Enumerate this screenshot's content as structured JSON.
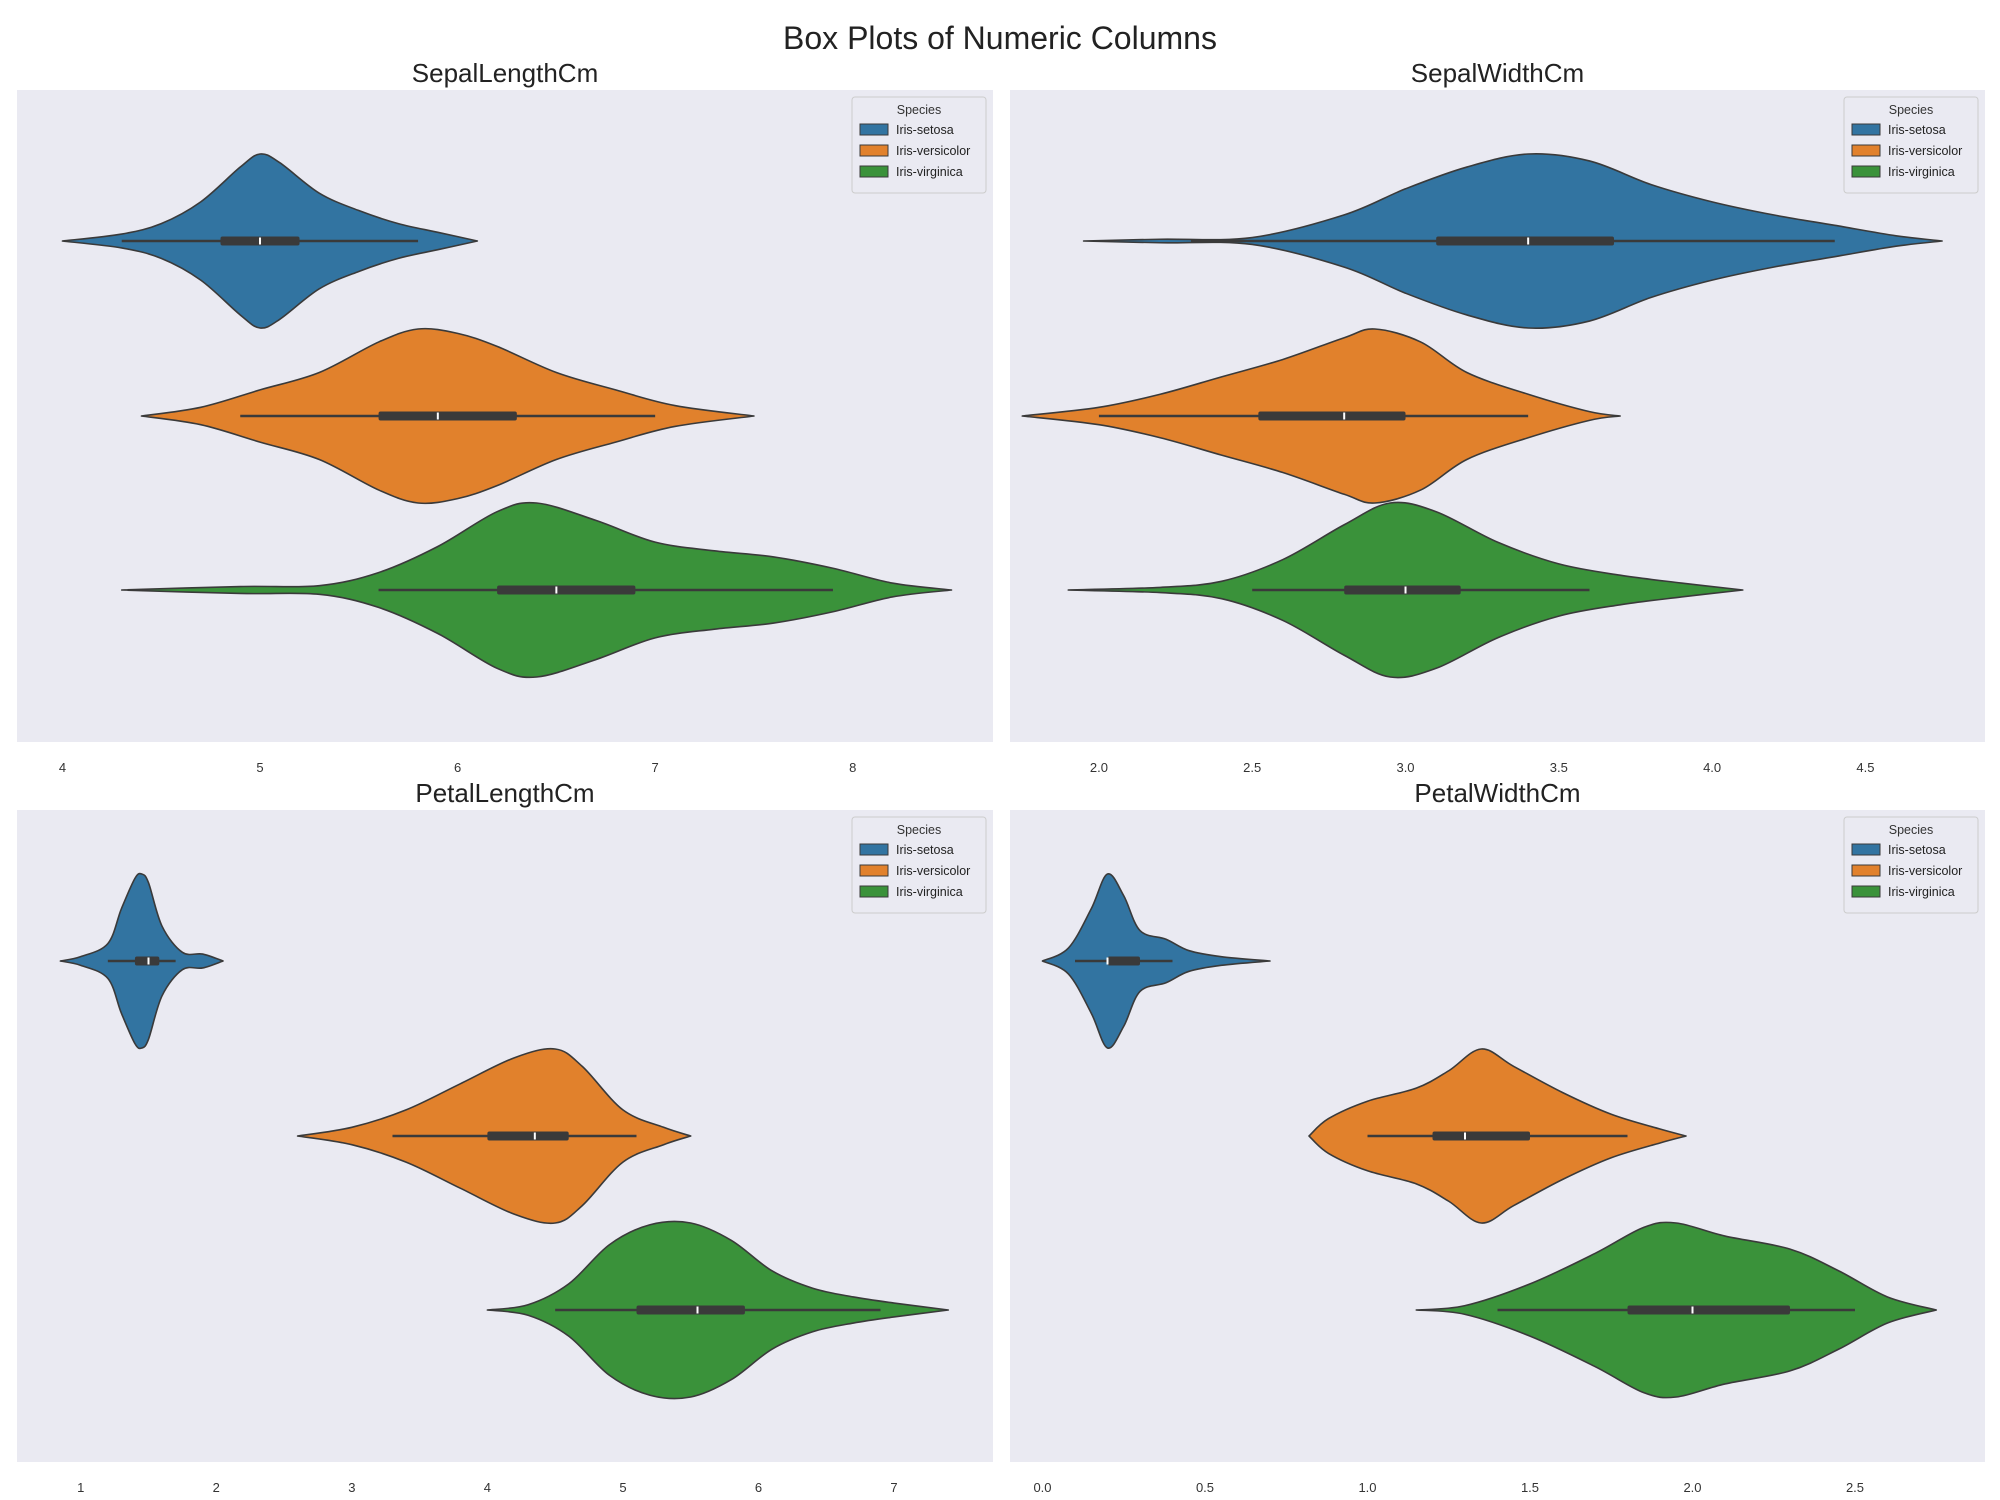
{
  "suptitle": "Box Plots of Numeric Columns",
  "palette": {
    "background": "#EAEAF2",
    "Iris-setosa": "#3274A1",
    "Iris-versicolor": "#E1812C",
    "Iris-virginica": "#3A923A",
    "outline": "#3A3A3A",
    "box": "#3A3A3A",
    "median": "#FFFFFF"
  },
  "chart_data": [
    {
      "type": "violin",
      "orientation": "horizontal",
      "title": "SepalLengthCm",
      "xlim": [
        3.77,
        8.71
      ],
      "xticks": [
        4,
        5,
        6,
        7,
        8
      ],
      "tick_labels": [
        "4",
        "5",
        "6",
        "7",
        "8"
      ],
      "grid": false,
      "legend": {
        "title": "Species",
        "loc": "upper right",
        "entries": [
          "Iris-setosa",
          "Iris-versicolor",
          "Iris-virginica"
        ]
      },
      "series": [
        {
          "name": "Iris-setosa",
          "support": [
            4.0,
            6.1
          ],
          "whiskers": [
            4.3,
            5.8
          ],
          "q1": 4.8,
          "q3": 5.2,
          "median": 5.0,
          "profile": [
            [
              4.0,
              0.0
            ],
            [
              4.3,
              0.08
            ],
            [
              4.5,
              0.2
            ],
            [
              4.7,
              0.45
            ],
            [
              4.9,
              0.85
            ],
            [
              5.0,
              1.0
            ],
            [
              5.1,
              0.9
            ],
            [
              5.3,
              0.55
            ],
            [
              5.5,
              0.35
            ],
            [
              5.7,
              0.2
            ],
            [
              5.9,
              0.1
            ],
            [
              6.1,
              0.0
            ]
          ]
        },
        {
          "name": "Iris-versicolor",
          "support": [
            4.4,
            7.5
          ],
          "whiskers": [
            4.9,
            7.0
          ],
          "q1": 5.6,
          "q3": 6.3,
          "median": 5.9,
          "profile": [
            [
              4.4,
              0.0
            ],
            [
              4.7,
              0.1
            ],
            [
              5.0,
              0.3
            ],
            [
              5.3,
              0.5
            ],
            [
              5.6,
              0.85
            ],
            [
              5.8,
              1.0
            ],
            [
              6.0,
              0.95
            ],
            [
              6.2,
              0.8
            ],
            [
              6.5,
              0.5
            ],
            [
              6.8,
              0.3
            ],
            [
              7.1,
              0.12
            ],
            [
              7.5,
              0.0
            ]
          ]
        },
        {
          "name": "Iris-virginica",
          "support": [
            4.3,
            8.5
          ],
          "whiskers": [
            5.6,
            7.9
          ],
          "q1": 6.2,
          "q3": 6.9,
          "median": 6.5,
          "profile": [
            [
              4.3,
              0.0
            ],
            [
              4.9,
              0.04
            ],
            [
              5.3,
              0.05
            ],
            [
              5.6,
              0.2
            ],
            [
              5.9,
              0.5
            ],
            [
              6.2,
              0.9
            ],
            [
              6.4,
              1.0
            ],
            [
              6.7,
              0.8
            ],
            [
              7.0,
              0.55
            ],
            [
              7.3,
              0.45
            ],
            [
              7.6,
              0.38
            ],
            [
              7.9,
              0.25
            ],
            [
              8.2,
              0.08
            ],
            [
              8.5,
              0.0
            ]
          ]
        }
      ]
    },
    {
      "type": "violin",
      "orientation": "horizontal",
      "title": "SepalWidthCm",
      "xlim": [
        1.71,
        4.89
      ],
      "xticks": [
        2.0,
        2.5,
        3.0,
        3.5,
        4.0,
        4.5
      ],
      "tick_labels": [
        "2.0",
        "2.5",
        "3.0",
        "3.5",
        "4.0",
        "4.5"
      ],
      "grid": false,
      "legend": {
        "title": "Species",
        "loc": "upper right",
        "entries": [
          "Iris-setosa",
          "Iris-versicolor",
          "Iris-virginica"
        ]
      },
      "series": [
        {
          "name": "Iris-setosa",
          "support": [
            1.95,
            4.75
          ],
          "whiskers": [
            2.3,
            4.4
          ],
          "q1": 3.1,
          "q3": 3.68,
          "median": 3.4,
          "profile": [
            [
              1.95,
              0.0
            ],
            [
              2.2,
              0.02
            ],
            [
              2.5,
              0.04
            ],
            [
              2.8,
              0.3
            ],
            [
              3.0,
              0.6
            ],
            [
              3.2,
              0.85
            ],
            [
              3.4,
              1.0
            ],
            [
              3.6,
              0.92
            ],
            [
              3.8,
              0.65
            ],
            [
              4.0,
              0.45
            ],
            [
              4.2,
              0.3
            ],
            [
              4.4,
              0.18
            ],
            [
              4.6,
              0.06
            ],
            [
              4.75,
              0.0
            ]
          ]
        },
        {
          "name": "Iris-versicolor",
          "support": [
            1.75,
            3.7
          ],
          "whiskers": [
            2.0,
            3.4
          ],
          "q1": 2.52,
          "q3": 3.0,
          "median": 2.8,
          "profile": [
            [
              1.75,
              0.0
            ],
            [
              2.0,
              0.1
            ],
            [
              2.2,
              0.25
            ],
            [
              2.4,
              0.45
            ],
            [
              2.6,
              0.65
            ],
            [
              2.8,
              0.9
            ],
            [
              2.9,
              1.0
            ],
            [
              3.05,
              0.85
            ],
            [
              3.2,
              0.5
            ],
            [
              3.4,
              0.25
            ],
            [
              3.6,
              0.05
            ],
            [
              3.7,
              0.0
            ]
          ]
        },
        {
          "name": "Iris-virginica",
          "support": [
            1.9,
            4.1
          ],
          "whiskers": [
            2.5,
            3.6
          ],
          "q1": 2.8,
          "q3": 3.18,
          "median": 3.0,
          "profile": [
            [
              1.9,
              0.0
            ],
            [
              2.2,
              0.03
            ],
            [
              2.4,
              0.1
            ],
            [
              2.6,
              0.35
            ],
            [
              2.8,
              0.75
            ],
            [
              2.95,
              1.0
            ],
            [
              3.1,
              0.9
            ],
            [
              3.3,
              0.55
            ],
            [
              3.5,
              0.3
            ],
            [
              3.7,
              0.17
            ],
            [
              3.9,
              0.08
            ],
            [
              4.1,
              0.0
            ]
          ]
        }
      ]
    },
    {
      "type": "violin",
      "orientation": "horizontal",
      "title": "PetalLengthCm",
      "xlim": [
        0.53,
        7.73
      ],
      "xticks": [
        1,
        2,
        3,
        4,
        5,
        6,
        7
      ],
      "tick_labels": [
        "1",
        "2",
        "3",
        "4",
        "5",
        "6",
        "7"
      ],
      "grid": false,
      "legend": {
        "title": "Species",
        "loc": "upper right",
        "entries": [
          "Iris-setosa",
          "Iris-versicolor",
          "Iris-virginica"
        ]
      },
      "series": [
        {
          "name": "Iris-setosa",
          "support": [
            0.85,
            2.05
          ],
          "whiskers": [
            1.2,
            1.7
          ],
          "q1": 1.4,
          "q3": 1.58,
          "median": 1.5,
          "profile": [
            [
              0.85,
              0.0
            ],
            [
              1.0,
              0.05
            ],
            [
              1.2,
              0.2
            ],
            [
              1.3,
              0.6
            ],
            [
              1.4,
              0.95
            ],
            [
              1.45,
              1.0
            ],
            [
              1.5,
              0.9
            ],
            [
              1.6,
              0.4
            ],
            [
              1.75,
              0.1
            ],
            [
              1.9,
              0.08
            ],
            [
              2.05,
              0.0
            ]
          ]
        },
        {
          "name": "Iris-versicolor",
          "support": [
            2.6,
            5.5
          ],
          "whiskers": [
            3.3,
            5.1
          ],
          "q1": 4.0,
          "q3": 4.6,
          "median": 4.35,
          "profile": [
            [
              2.6,
              0.0
            ],
            [
              3.0,
              0.1
            ],
            [
              3.4,
              0.3
            ],
            [
              3.8,
              0.6
            ],
            [
              4.2,
              0.9
            ],
            [
              4.5,
              1.0
            ],
            [
              4.7,
              0.8
            ],
            [
              5.0,
              0.3
            ],
            [
              5.3,
              0.1
            ],
            [
              5.5,
              0.0
            ]
          ]
        },
        {
          "name": "Iris-virginica",
          "support": [
            4.0,
            7.4
          ],
          "whiskers": [
            4.5,
            6.9
          ],
          "q1": 5.1,
          "q3": 5.9,
          "median": 5.55,
          "profile": [
            [
              4.0,
              0.0
            ],
            [
              4.3,
              0.06
            ],
            [
              4.6,
              0.3
            ],
            [
              4.9,
              0.75
            ],
            [
              5.2,
              0.98
            ],
            [
              5.5,
              1.0
            ],
            [
              5.8,
              0.8
            ],
            [
              6.1,
              0.45
            ],
            [
              6.4,
              0.25
            ],
            [
              6.7,
              0.15
            ],
            [
              7.0,
              0.08
            ],
            [
              7.4,
              0.0
            ]
          ]
        }
      ]
    },
    {
      "type": "violin",
      "orientation": "horizontal",
      "title": "PetalWidthCm",
      "xlim": [
        -0.1,
        2.9
      ],
      "xticks": [
        0.0,
        0.5,
        1.0,
        1.5,
        2.0,
        2.5
      ],
      "tick_labels": [
        "0.0",
        "0.5",
        "1.0",
        "1.5",
        "2.0",
        "2.5"
      ],
      "grid": false,
      "legend": {
        "title": "Species",
        "loc": "upper right",
        "entries": [
          "Iris-setosa",
          "Iris-versicolor",
          "Iris-virginica"
        ]
      },
      "series": [
        {
          "name": "Iris-setosa",
          "support": [
            0.0,
            0.7
          ],
          "whiskers": [
            0.1,
            0.4
          ],
          "q1": 0.2,
          "q3": 0.3,
          "median": 0.2,
          "profile": [
            [
              0.0,
              0.0
            ],
            [
              0.08,
              0.15
            ],
            [
              0.15,
              0.6
            ],
            [
              0.2,
              1.0
            ],
            [
              0.25,
              0.75
            ],
            [
              0.3,
              0.35
            ],
            [
              0.38,
              0.25
            ],
            [
              0.45,
              0.12
            ],
            [
              0.55,
              0.05
            ],
            [
              0.7,
              0.0
            ]
          ]
        },
        {
          "name": "Iris-versicolor",
          "support": [
            0.82,
            1.98
          ],
          "whiskers": [
            1.0,
            1.8
          ],
          "q1": 1.2,
          "q3": 1.5,
          "median": 1.3,
          "profile": [
            [
              0.82,
              0.0
            ],
            [
              0.88,
              0.2
            ],
            [
              1.0,
              0.4
            ],
            [
              1.15,
              0.55
            ],
            [
              1.25,
              0.75
            ],
            [
              1.35,
              1.0
            ],
            [
              1.45,
              0.8
            ],
            [
              1.6,
              0.5
            ],
            [
              1.75,
              0.25
            ],
            [
              1.9,
              0.08
            ],
            [
              1.98,
              0.0
            ]
          ]
        },
        {
          "name": "Iris-virginica",
          "support": [
            1.15,
            2.75
          ],
          "whiskers": [
            1.4,
            2.5
          ],
          "q1": 1.8,
          "q3": 2.3,
          "median": 2.0,
          "profile": [
            [
              1.15,
              0.0
            ],
            [
              1.3,
              0.05
            ],
            [
              1.5,
              0.3
            ],
            [
              1.7,
              0.65
            ],
            [
              1.85,
              0.95
            ],
            [
              1.95,
              1.0
            ],
            [
              2.1,
              0.85
            ],
            [
              2.3,
              0.7
            ],
            [
              2.45,
              0.45
            ],
            [
              2.6,
              0.15
            ],
            [
              2.75,
              0.0
            ]
          ]
        }
      ]
    }
  ]
}
